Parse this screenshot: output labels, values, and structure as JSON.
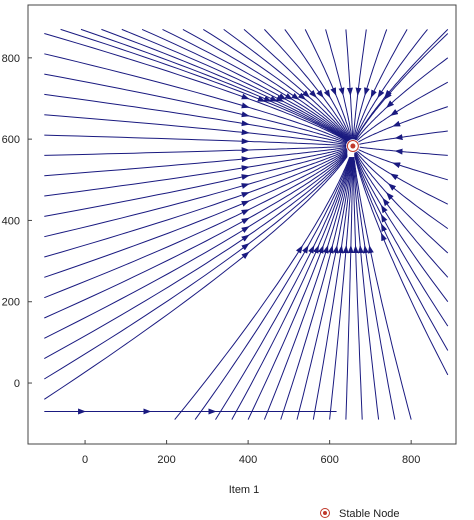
{
  "chart_data": {
    "type": "stream plot",
    "xlabel": "Item 1",
    "ylabel": "",
    "xlim": [
      -140,
      910
    ],
    "ylim": [
      -150,
      930
    ],
    "x_ticks": [
      0,
      200,
      400,
      600,
      800
    ],
    "y_ticks": [
      0,
      200,
      400,
      600,
      800
    ],
    "x_tick_labels": [
      "0",
      "200",
      "400",
      "600",
      "800"
    ],
    "y_tick_labels": [
      "0",
      "200",
      "400",
      "600",
      "800"
    ],
    "stable_node": {
      "x": 657,
      "y": 583
    },
    "stream_color": "#1a1a80",
    "node_color": "#c0392b",
    "legend": [
      {
        "label": "Stable Node",
        "marker": "node"
      }
    ],
    "streamlines": {
      "left_edge_seeds_y": [
        860,
        810,
        760,
        710,
        660,
        610,
        560,
        510,
        460,
        410,
        360,
        310,
        260,
        210,
        160,
        110,
        60,
        10,
        -40
      ],
      "top_edge_seeds_x": [
        -60,
        -10,
        40,
        90,
        140,
        190,
        240,
        290,
        340,
        390,
        440,
        490,
        540,
        590,
        640,
        690,
        740,
        790,
        840,
        890
      ],
      "right_edge_seeds_y": [
        860,
        800,
        740,
        680,
        620,
        560,
        500,
        440,
        380,
        320,
        260,
        200,
        140,
        80,
        20
      ],
      "bottom_edge_seeds_x": [
        220,
        270,
        320,
        360,
        400,
        440,
        480,
        520,
        560,
        600,
        640,
        680,
        720,
        760,
        800
      ],
      "bottom_trajectory_y": -70
    }
  }
}
